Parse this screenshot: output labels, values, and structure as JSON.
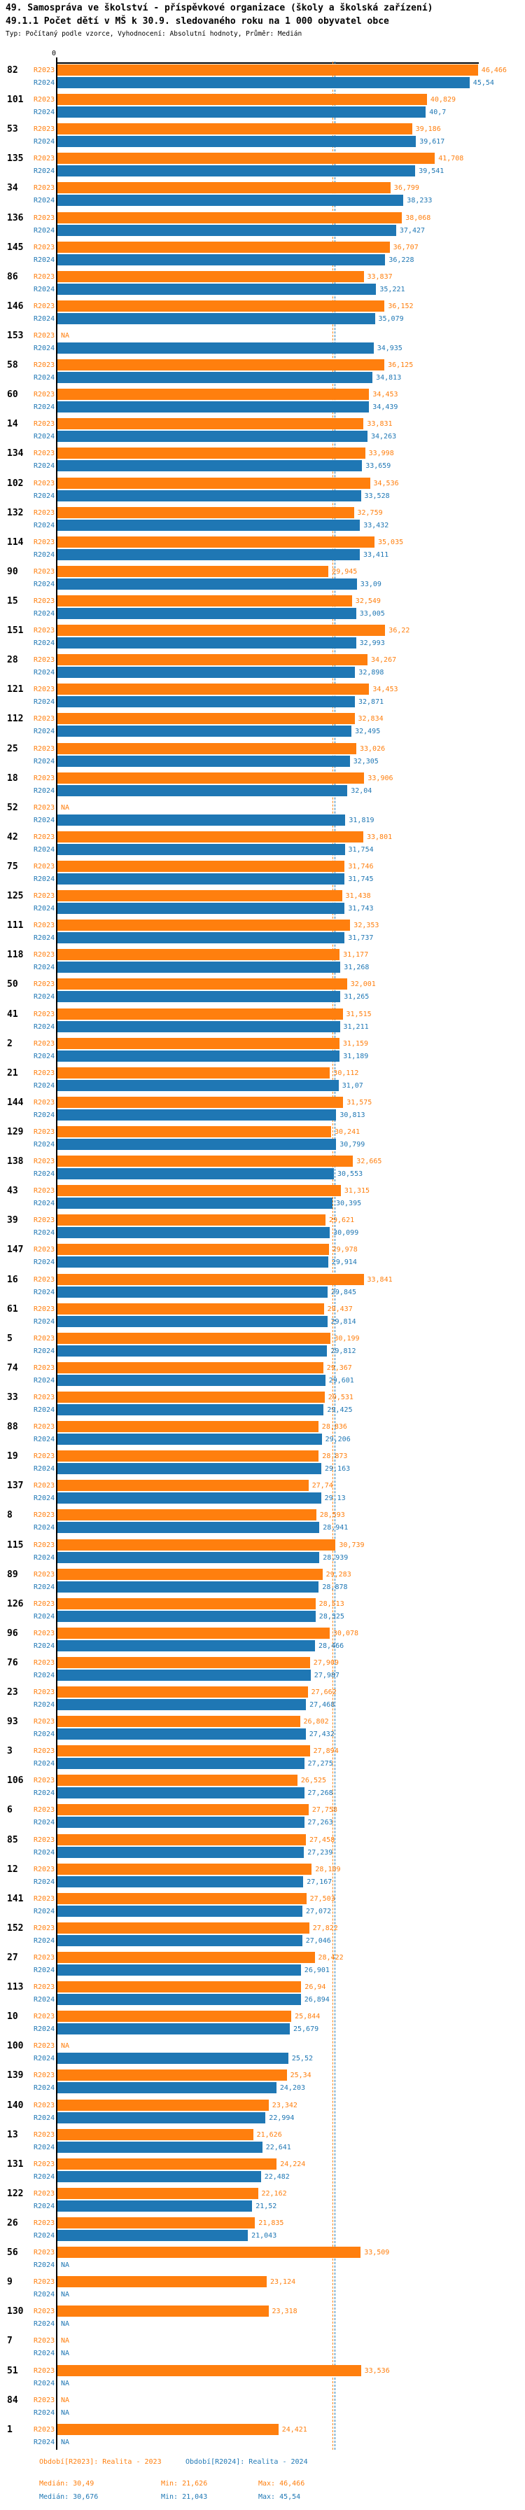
{
  "header": {
    "title": "49. Samospráva ve školství - příspěvkové organizace (školy a školská zařízení)",
    "subtitle": "49.1.1 Počet dětí v MŠ k 30.9. sledovaného roku na 1 000 obyvatel obce",
    "meta": "Typ: Počítaný podle vzorce, Vyhodnocení: Absolutní hodnoty, Průměr: Medián"
  },
  "chart_data": {
    "type": "bar",
    "orientation": "horizontal",
    "axis": {
      "tick0": "0",
      "x_min": 0,
      "x_max": 46.6
    },
    "series_labels": [
      "R2023",
      "R2024"
    ],
    "colors": {
      "r2023": "#ff7f0e",
      "r2024": "#1f77b4"
    },
    "medians": {
      "r2023": 30.49,
      "r2024": 30.676
    },
    "na_text": "NA",
    "groups": [
      {
        "id": "82",
        "r2023": "46,466",
        "r2024": "45,54"
      },
      {
        "id": "101",
        "r2023": "40,829",
        "r2024": "40,7"
      },
      {
        "id": "53",
        "r2023": "39,186",
        "r2024": "39,617"
      },
      {
        "id": "135",
        "r2023": "41,708",
        "r2024": "39,541"
      },
      {
        "id": "34",
        "r2023": "36,799",
        "r2024": "38,233"
      },
      {
        "id": "136",
        "r2023": "38,068",
        "r2024": "37,427"
      },
      {
        "id": "145",
        "r2023": "36,707",
        "r2024": "36,228"
      },
      {
        "id": "86",
        "r2023": "33,837",
        "r2024": "35,221"
      },
      {
        "id": "146",
        "r2023": "36,152",
        "r2024": "35,079"
      },
      {
        "id": "153",
        "r2023": "NA",
        "r2024": "34,935"
      },
      {
        "id": "58",
        "r2023": "36,125",
        "r2024": "34,813"
      },
      {
        "id": "60",
        "r2023": "34,453",
        "r2024": "34,439"
      },
      {
        "id": "14",
        "r2023": "33,831",
        "r2024": "34,263"
      },
      {
        "id": "134",
        "r2023": "33,998",
        "r2024": "33,659"
      },
      {
        "id": "102",
        "r2023": "34,536",
        "r2024": "33,528"
      },
      {
        "id": "132",
        "r2023": "32,759",
        "r2024": "33,432"
      },
      {
        "id": "114",
        "r2023": "35,035",
        "r2024": "33,411"
      },
      {
        "id": "90",
        "r2023": "29,945",
        "r2024": "33,09"
      },
      {
        "id": "15",
        "r2023": "32,549",
        "r2024": "33,005"
      },
      {
        "id": "151",
        "r2023": "36,22",
        "r2024": "32,993"
      },
      {
        "id": "28",
        "r2023": "34,267",
        "r2024": "32,898"
      },
      {
        "id": "121",
        "r2023": "34,453",
        "r2024": "32,871"
      },
      {
        "id": "112",
        "r2023": "32,834",
        "r2024": "32,495"
      },
      {
        "id": "25",
        "r2023": "33,026",
        "r2024": "32,305"
      },
      {
        "id": "18",
        "r2023": "33,906",
        "r2024": "32,04"
      },
      {
        "id": "52",
        "r2023": "NA",
        "r2024": "31,819"
      },
      {
        "id": "42",
        "r2023": "33,801",
        "r2024": "31,754"
      },
      {
        "id": "75",
        "r2023": "31,746",
        "r2024": "31,745"
      },
      {
        "id": "125",
        "r2023": "31,438",
        "r2024": "31,743"
      },
      {
        "id": "111",
        "r2023": "32,353",
        "r2024": "31,737"
      },
      {
        "id": "118",
        "r2023": "31,177",
        "r2024": "31,268"
      },
      {
        "id": "50",
        "r2023": "32,001",
        "r2024": "31,265"
      },
      {
        "id": "41",
        "r2023": "31,515",
        "r2024": "31,211"
      },
      {
        "id": "2",
        "r2023": "31,159",
        "r2024": "31,189"
      },
      {
        "id": "21",
        "r2023": "30,112",
        "r2024": "31,07"
      },
      {
        "id": "144",
        "r2023": "31,575",
        "r2024": "30,813"
      },
      {
        "id": "129",
        "r2023": "30,241",
        "r2024": "30,799"
      },
      {
        "id": "138",
        "r2023": "32,665",
        "r2024": "30,553"
      },
      {
        "id": "43",
        "r2023": "31,315",
        "r2024": "30,395"
      },
      {
        "id": "39",
        "r2023": "29,621",
        "r2024": "30,099"
      },
      {
        "id": "147",
        "r2023": "29,978",
        "r2024": "29,914"
      },
      {
        "id": "16",
        "r2023": "33,841",
        "r2024": "29,845"
      },
      {
        "id": "61",
        "r2023": "29,437",
        "r2024": "29,814"
      },
      {
        "id": "5",
        "r2023": "30,199",
        "r2024": "29,812"
      },
      {
        "id": "74",
        "r2023": "29,367",
        "r2024": "29,601"
      },
      {
        "id": "33",
        "r2023": "29,531",
        "r2024": "29,425"
      },
      {
        "id": "88",
        "r2023": "28,836",
        "r2024": "29,206"
      },
      {
        "id": "19",
        "r2023": "28,873",
        "r2024": "29,163"
      },
      {
        "id": "137",
        "r2023": "27,74",
        "r2024": "29,13"
      },
      {
        "id": "8",
        "r2023": "28,593",
        "r2024": "28,941"
      },
      {
        "id": "115",
        "r2023": "30,739",
        "r2024": "28,939"
      },
      {
        "id": "89",
        "r2023": "29,283",
        "r2024": "28,878"
      },
      {
        "id": "126",
        "r2023": "28,513",
        "r2024": "28,525"
      },
      {
        "id": "96",
        "r2023": "30,078",
        "r2024": "28,466"
      },
      {
        "id": "76",
        "r2023": "27,909",
        "r2024": "27,987"
      },
      {
        "id": "23",
        "r2023": "27,662",
        "r2024": "27,468"
      },
      {
        "id": "93",
        "r2023": "26,802",
        "r2024": "27,432"
      },
      {
        "id": "3",
        "r2023": "27,894",
        "r2024": "27,275"
      },
      {
        "id": "106",
        "r2023": "26,525",
        "r2024": "27,268"
      },
      {
        "id": "6",
        "r2023": "27,758",
        "r2024": "27,263"
      },
      {
        "id": "85",
        "r2023": "27,458",
        "r2024": "27,239"
      },
      {
        "id": "12",
        "r2023": "28,109",
        "r2024": "27,167"
      },
      {
        "id": "141",
        "r2023": "27,503",
        "r2024": "27,072"
      },
      {
        "id": "152",
        "r2023": "27,822",
        "r2024": "27,046"
      },
      {
        "id": "27",
        "r2023": "28,422",
        "r2024": "26,901"
      },
      {
        "id": "113",
        "r2023": "26,94",
        "r2024": "26,894"
      },
      {
        "id": "10",
        "r2023": "25,844",
        "r2024": "25,679"
      },
      {
        "id": "100",
        "r2023": "NA",
        "r2024": "25,52"
      },
      {
        "id": "139",
        "r2023": "25,34",
        "r2024": "24,203"
      },
      {
        "id": "140",
        "r2023": "23,342",
        "r2024": "22,994"
      },
      {
        "id": "13",
        "r2023": "21,626",
        "r2024": "22,641"
      },
      {
        "id": "131",
        "r2023": "24,224",
        "r2024": "22,482"
      },
      {
        "id": "122",
        "r2023": "22,162",
        "r2024": "21,52"
      },
      {
        "id": "26",
        "r2023": "21,835",
        "r2024": "21,043"
      },
      {
        "id": "56",
        "r2023": "33,509",
        "r2024": "NA"
      },
      {
        "id": "9",
        "r2023": "23,124",
        "r2024": "NA"
      },
      {
        "id": "130",
        "r2023": "23,318",
        "r2024": "NA"
      },
      {
        "id": "7",
        "r2023": "NA",
        "r2024": "NA"
      },
      {
        "id": "51",
        "r2023": "33,536",
        "r2024": "NA"
      },
      {
        "id": "84",
        "r2023": "NA",
        "r2024": "NA"
      },
      {
        "id": "1",
        "r2023": "24,421",
        "r2024": "NA"
      }
    ]
  },
  "footer": {
    "period_2023": "Období[R2023]: Realita - 2023",
    "period_2024": "Období[R2024]: Realita - 2024",
    "median_2023": "Medián: 30,49",
    "min_2023": "Min: 21,626",
    "max_2023": "Max: 46,466",
    "median_2024": "Medián: 30,676",
    "min_2024": "Min: 21,043",
    "max_2024": "Max: 45,54"
  }
}
